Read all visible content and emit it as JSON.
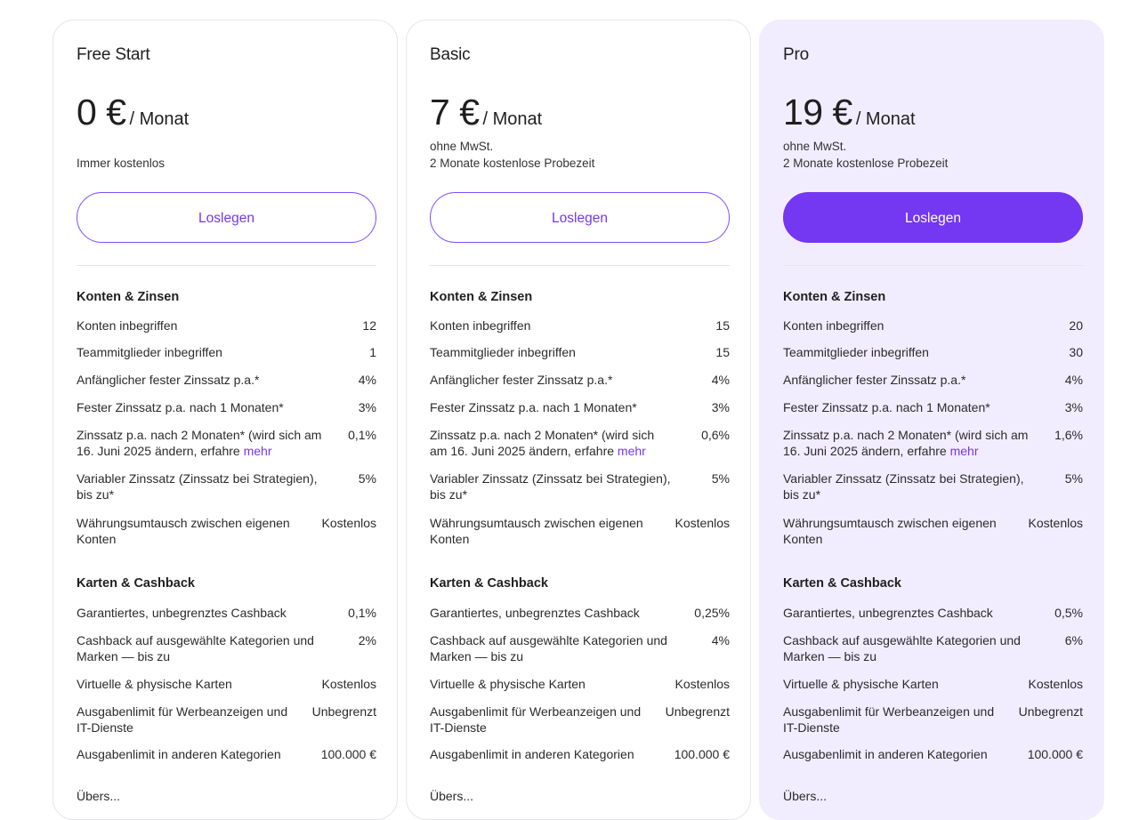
{
  "common": {
    "cta_label": "Loslegen",
    "per_month": "/ Monat",
    "section1_title": "Konten & Zinsen",
    "section2_title": "Karten & Cashback",
    "more_link": "mehr",
    "next_section_partial": "Übers..."
  },
  "labels": {
    "accounts": "Konten inbegriffen",
    "members": "Teammitglieder inbegriffen",
    "initial_rate": "Anfänglicher fester Zinssatz p.a.*",
    "fixed_rate": "Fester Zinssatz p.a. nach 1 Monaten*",
    "rate_after_2_prefix": "Zinssatz p.a. nach 2 Monaten* (wird sich am 16. Juni 2025 ändern, erfahre",
    "variable_rate": "Variabler Zinssatz (Zinssatz bei Strategien), bis zu*",
    "fx": "Währungsumtausch zwischen eigenen Konten",
    "cashback": "Garantiertes, unbegrenztes Cashback",
    "cashback_categories": "Cashback auf ausgewählte Kategorien und Marken — bis zu",
    "cards": "Virtuelle & physische Karten",
    "ad_limit": "Ausgabenlimit für Werbeanzeigen und IT-Dienste",
    "other_limit": "Ausgabenlimit in anderen Kategorien"
  },
  "plans": [
    {
      "name": "Free Start",
      "price": "0 €",
      "note1": "Immer kostenlos",
      "note2": "",
      "values": {
        "accounts": "12",
        "members": "1",
        "initial_rate": "4%",
        "fixed_rate": "3%",
        "rate_after_2": "0,1%",
        "variable_rate": "5%",
        "fx": "Kostenlos",
        "cashback": "0,1%",
        "cashback_categories": "2%",
        "cards": "Kostenlos",
        "ad_limit": "Unbegrenzt",
        "other_limit": "100.000 €"
      }
    },
    {
      "name": "Basic",
      "price": "7 €",
      "note1": "ohne MwSt.",
      "note2": "2 Monate kostenlose Probezeit",
      "values": {
        "accounts": "15",
        "members": "15",
        "initial_rate": "4%",
        "fixed_rate": "3%",
        "rate_after_2": "0,6%",
        "variable_rate": "5%",
        "fx": "Kostenlos",
        "cashback": "0,25%",
        "cashback_categories": "4%",
        "cards": "Kostenlos",
        "ad_limit": "Unbegrenzt",
        "other_limit": "100.000 €"
      }
    },
    {
      "name": "Pro",
      "price": "19 €",
      "note1": "ohne MwSt.",
      "note2": "2 Monate kostenlose Probezeit",
      "values": {
        "accounts": "20",
        "members": "30",
        "initial_rate": "4%",
        "fixed_rate": "3%",
        "rate_after_2": "1,6%",
        "variable_rate": "5%",
        "fx": "Kostenlos",
        "cashback": "0,5%",
        "cashback_categories": "6%",
        "cards": "Kostenlos",
        "ad_limit": "Unbegrenzt",
        "other_limit": "100.000 €"
      }
    }
  ],
  "colors": {
    "accent": "#7437f2",
    "pro_background": "#f2ecff",
    "border": "#e6e6e9"
  }
}
